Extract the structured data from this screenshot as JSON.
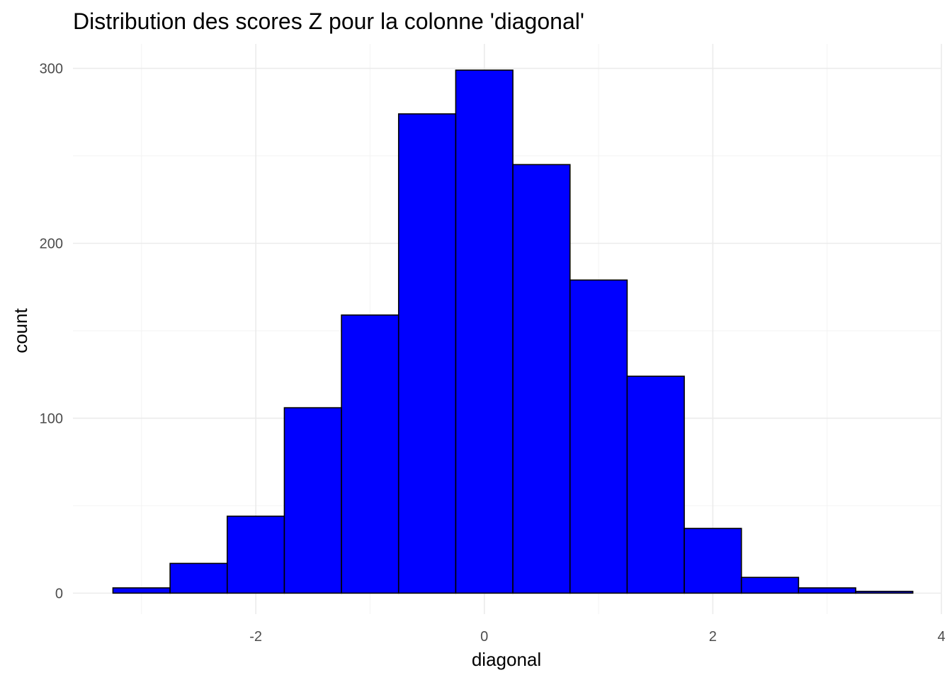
{
  "chart_data": {
    "type": "bar",
    "subtype": "histogram",
    "title": "Distribution des scores Z pour la colonne 'diagonal'",
    "xlabel": "diagonal",
    "ylabel": "count",
    "bin_width": 0.5,
    "bins": [
      {
        "x_min": -3.25,
        "x_max": -2.75,
        "count": 3
      },
      {
        "x_min": -2.75,
        "x_max": -2.25,
        "count": 17
      },
      {
        "x_min": -2.25,
        "x_max": -1.75,
        "count": 44
      },
      {
        "x_min": -1.75,
        "x_max": -1.25,
        "count": 106
      },
      {
        "x_min": -1.25,
        "x_max": -0.75,
        "count": 159
      },
      {
        "x_min": -0.75,
        "x_max": -0.25,
        "count": 274
      },
      {
        "x_min": -0.25,
        "x_max": 0.25,
        "count": 299
      },
      {
        "x_min": 0.25,
        "x_max": 0.75,
        "count": 245
      },
      {
        "x_min": 0.75,
        "x_max": 1.25,
        "count": 179
      },
      {
        "x_min": 1.25,
        "x_max": 1.75,
        "count": 124
      },
      {
        "x_min": 1.75,
        "x_max": 2.25,
        "count": 37
      },
      {
        "x_min": 2.25,
        "x_max": 2.75,
        "count": 9
      },
      {
        "x_min": 2.75,
        "x_max": 3.25,
        "count": 3
      },
      {
        "x_min": 3.25,
        "x_max": 3.75,
        "count": 1
      }
    ],
    "xlim": [
      -3.6,
      4.0
    ],
    "ylim": [
      -12,
      314
    ],
    "x_ticks": [
      -2,
      0,
      2,
      4
    ],
    "x_tick_labels": [
      "-2",
      "0",
      "2",
      "4"
    ],
    "y_ticks": [
      0,
      100,
      200,
      300
    ],
    "y_tick_labels": [
      "0",
      "100",
      "200",
      "300"
    ],
    "x_minor_ticks": [
      -3,
      -1,
      1,
      3
    ],
    "y_minor_ticks": [
      50,
      150,
      250
    ],
    "grid": true,
    "legend": false,
    "colors": {
      "fill": "#0000ff",
      "outline": "#000000",
      "grid": "#ebebeb",
      "tick_text": "#4d4d4d"
    }
  }
}
